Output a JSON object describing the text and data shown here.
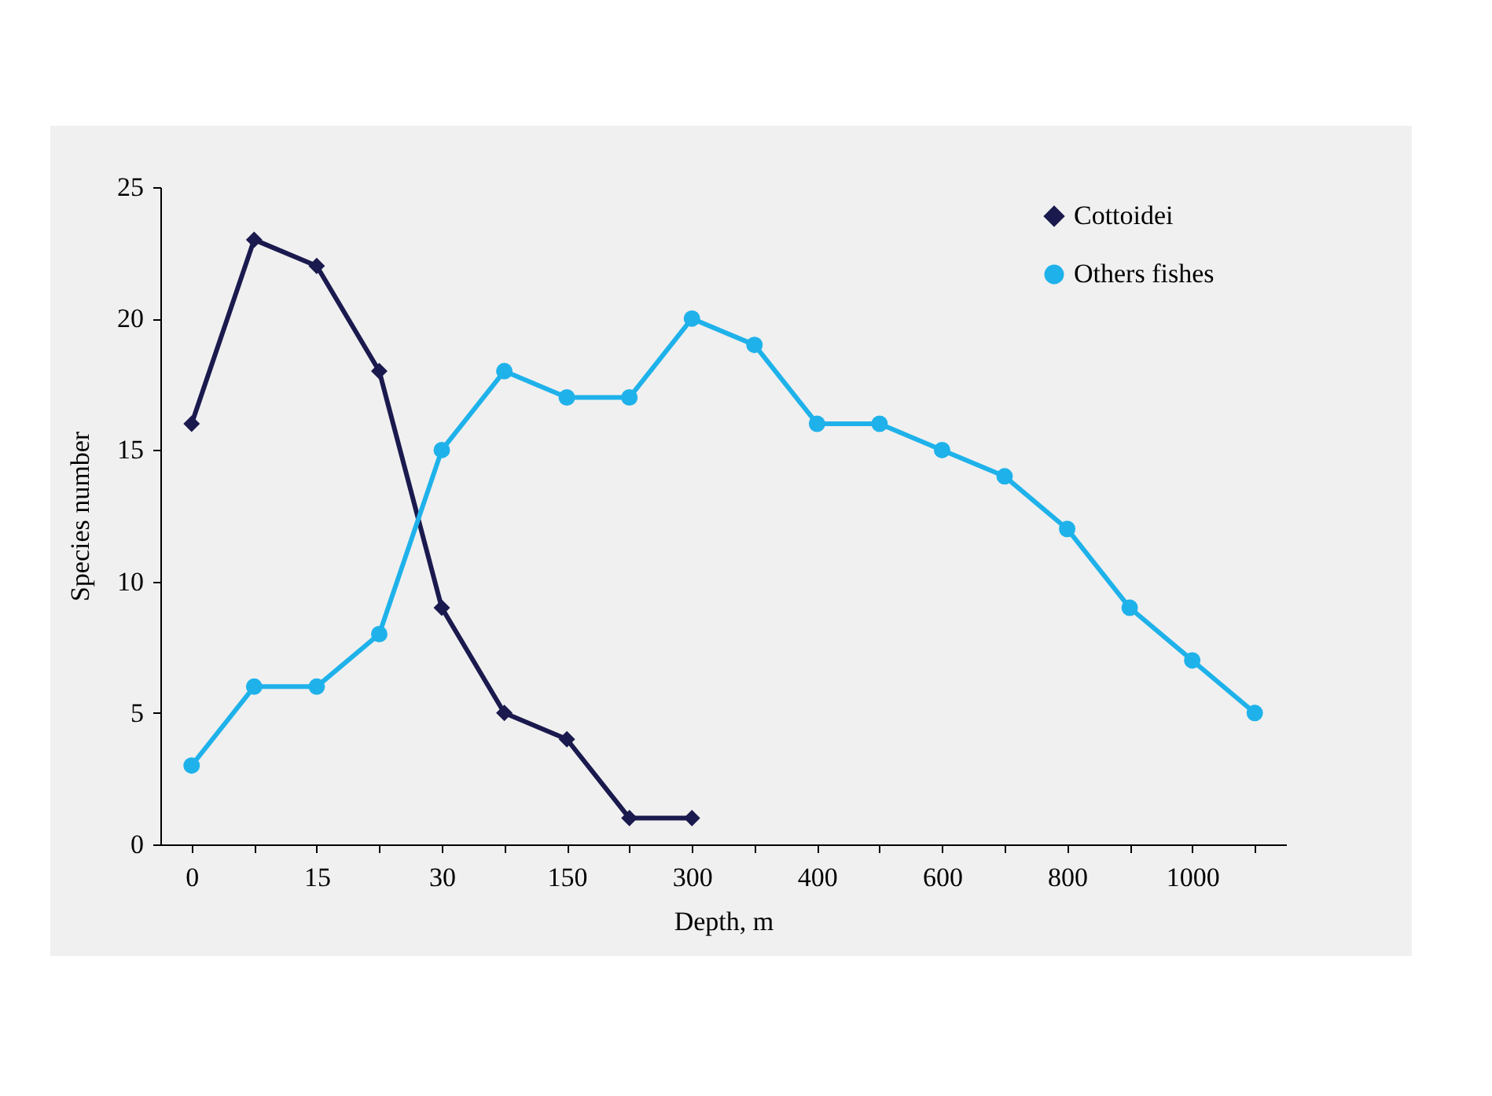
{
  "chart_data": {
    "type": "line",
    "xlabel": "Depth, m",
    "ylabel": "Species number",
    "categories": [
      "0",
      null,
      "15",
      null,
      "30",
      null,
      "150",
      null,
      "300",
      null,
      "400",
      null,
      "600",
      null,
      "800",
      null,
      "1000",
      null
    ],
    "series": [
      {
        "name": "Cottoidei",
        "color": "#1b1a4e",
        "marker": "diamond",
        "values": [
          16,
          23,
          22,
          18,
          9,
          5,
          4,
          1,
          1,
          null,
          null,
          null,
          null,
          null,
          null,
          null,
          null,
          null
        ]
      },
      {
        "name": "Others fishes",
        "color": "#1fb2ea",
        "marker": "circle",
        "values": [
          3,
          6,
          6,
          8,
          15,
          18,
          17,
          17,
          20,
          19,
          16,
          16,
          15,
          14,
          12,
          9,
          7,
          5
        ]
      }
    ],
    "ylim": [
      0,
      25
    ],
    "yticks": [
      0,
      5,
      10,
      15,
      20,
      25
    ],
    "grid": false,
    "legend": "top right",
    "line_style": "solid"
  }
}
